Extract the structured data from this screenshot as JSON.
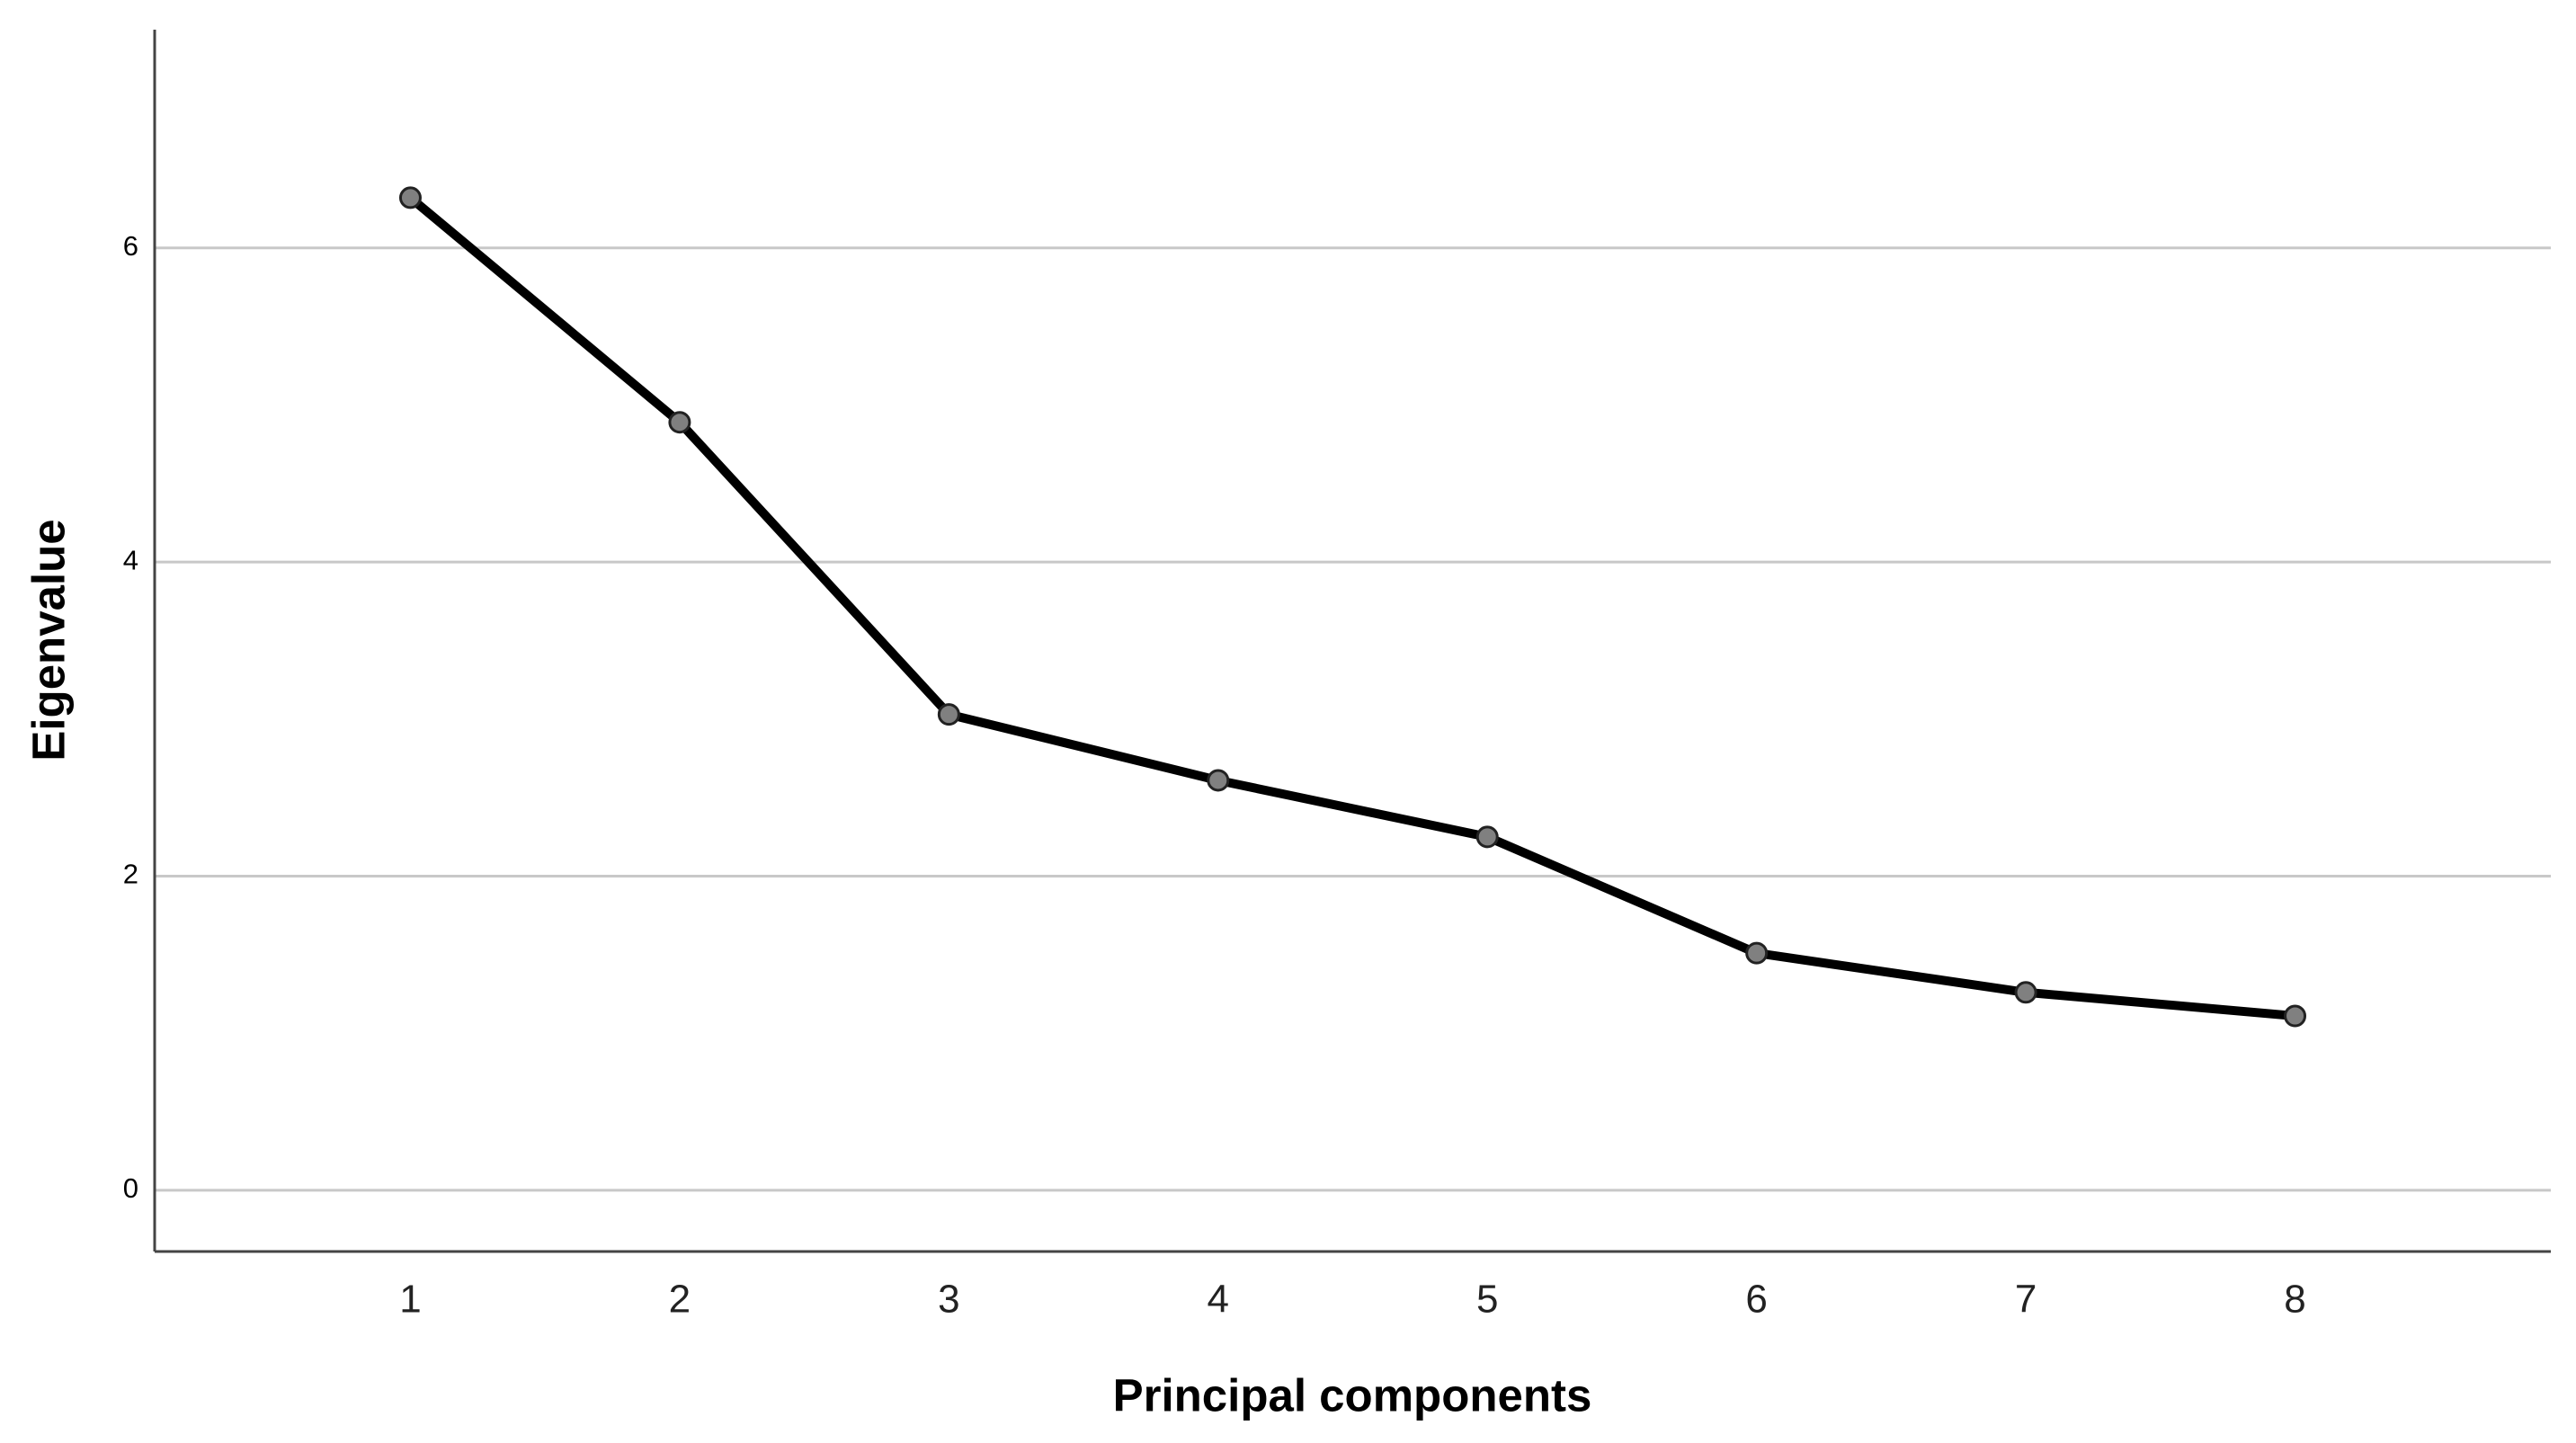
{
  "chart_data": {
    "type": "line",
    "x_label": "Principal components",
    "y_label": "Eigenvalue",
    "x": [
      1,
      2,
      3,
      4,
      5,
      6,
      7,
      8
    ],
    "values": [
      6.32,
      4.89,
      3.03,
      2.61,
      2.25,
      1.51,
      1.26,
      1.11
    ],
    "color": "#000000",
    "marker_color": "#808080",
    "xlim": [
      0.05,
      8.95
    ],
    "xticks": [
      1,
      2,
      3,
      4,
      5,
      6,
      7,
      8
    ],
    "ylim": [
      -0.39,
      7.39
    ],
    "yticks": [
      0,
      2,
      4,
      6
    ],
    "grid": true
  }
}
